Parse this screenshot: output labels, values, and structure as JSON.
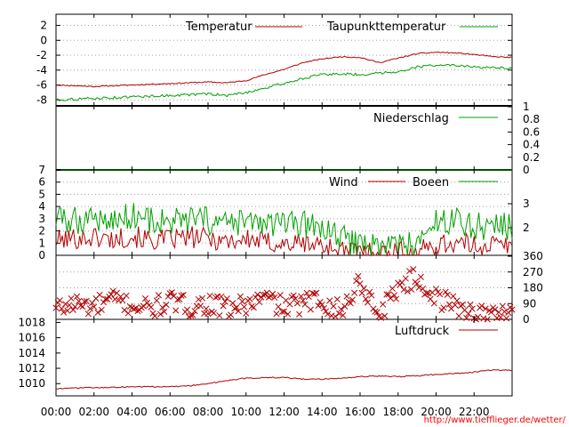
{
  "colors": {
    "temperature": "#b00000",
    "dewpoint": "#00a000",
    "precipitation": "#00a000",
    "wind": "#b00000",
    "gusts": "#00a000",
    "direction": "#b00000",
    "pressure": "#b00000",
    "url": "#ff0000"
  },
  "footer": {
    "url": "http://www.tiefflieger.de/wetter/"
  },
  "chart_data": [
    {
      "type": "line",
      "x": [
        "00:00",
        "01:00",
        "02:00",
        "03:00",
        "04:00",
        "05:00",
        "06:00",
        "07:00",
        "08:00",
        "09:00",
        "10:00",
        "11:00",
        "12:00",
        "13:00",
        "14:00",
        "15:00",
        "16:00",
        "17:00",
        "18:00",
        "19:00",
        "20:00",
        "21:00",
        "22:00",
        "23:00",
        "24:00"
      ],
      "series": [
        {
          "name": "Temperatur",
          "values": [
            -6.0,
            -6.1,
            -6.2,
            -6.1,
            -6.0,
            -5.9,
            -5.8,
            -5.7,
            -5.6,
            -5.7,
            -5.4,
            -4.6,
            -3.9,
            -3.0,
            -2.5,
            -2.2,
            -2.3,
            -3.0,
            -2.4,
            -1.8,
            -1.6,
            -1.7,
            -1.9,
            -2.2,
            -2.3
          ]
        },
        {
          "name": "Taupunkttemperatur",
          "values": [
            -8.0,
            -7.9,
            -7.8,
            -7.7,
            -7.6,
            -7.5,
            -7.4,
            -7.3,
            -7.2,
            -7.4,
            -7.0,
            -6.4,
            -5.8,
            -5.1,
            -4.6,
            -4.5,
            -4.6,
            -4.4,
            -4.2,
            -3.6,
            -3.3,
            -3.4,
            -3.6,
            -3.7,
            -3.8
          ]
        }
      ],
      "yticks": [
        2,
        0,
        -2,
        -4,
        -6,
        -8
      ],
      "ylim": [
        -8.8,
        3.5
      ]
    },
    {
      "type": "line",
      "x": [
        "00:00",
        "24:00"
      ],
      "series": [
        {
          "name": "Niederschlag",
          "values": [
            0,
            0
          ]
        }
      ],
      "yticks_right": [
        "1",
        "0.8",
        "0.6",
        "0.4",
        "0.2",
        "0"
      ],
      "ylim": [
        0,
        1
      ]
    },
    {
      "type": "line",
      "x": [
        "00:00",
        "01:00",
        "02:00",
        "03:00",
        "04:00",
        "05:00",
        "06:00",
        "07:00",
        "08:00",
        "09:00",
        "10:00",
        "11:00",
        "12:00",
        "13:00",
        "14:00",
        "15:00",
        "16:00",
        "17:00",
        "18:00",
        "19:00",
        "20:00",
        "21:00",
        "22:00",
        "23:00",
        "24:00"
      ],
      "series": [
        {
          "name": "Wind",
          "values": [
            1.2,
            1.4,
            1.5,
            1.3,
            1.6,
            1.2,
            1.3,
            1.5,
            1.4,
            1.2,
            1.3,
            1.1,
            0.9,
            1.0,
            0.8,
            0.4,
            0.3,
            0.2,
            0.3,
            0.2,
            0.9,
            1.0,
            0.8,
            0.9,
            0.7
          ]
        },
        {
          "name": "Boeen",
          "values": [
            3.0,
            2.8,
            3.2,
            2.7,
            3.4,
            2.9,
            2.6,
            2.9,
            2.8,
            2.5,
            2.7,
            2.6,
            2.4,
            2.5,
            2.3,
            1.3,
            1.0,
            0.8,
            0.9,
            0.8,
            2.6,
            2.9,
            2.4,
            2.5,
            2.2
          ]
        }
      ],
      "yticks": [
        7,
        6,
        5,
        4,
        3,
        2,
        1,
        0
      ],
      "yticks_right": [
        "3",
        "2"
      ],
      "ylim": [
        0,
        7
      ]
    },
    {
      "type": "scatter",
      "x": [
        "00:00",
        "01:00",
        "02:00",
        "03:00",
        "04:00",
        "05:00",
        "06:00",
        "07:00",
        "08:00",
        "09:00",
        "10:00",
        "11:00",
        "12:00",
        "13:00",
        "14:00",
        "15:00",
        "16:00",
        "17:00",
        "18:00",
        "19:00",
        "20:00",
        "21:00",
        "22:00",
        "23:00",
        "24:00"
      ],
      "series": [
        {
          "name": "",
          "values": [
            60,
            90,
            70,
            110,
            80,
            60,
            100,
            70,
            90,
            60,
            80,
            120,
            70,
            90,
            110,
            40,
            220,
            20,
            190,
            230,
            120,
            80,
            40,
            20,
            60
          ]
        }
      ],
      "yticks_right": [
        "360",
        "270",
        "180",
        "90",
        "0"
      ],
      "ylim": [
        0,
        360
      ]
    },
    {
      "type": "line",
      "x": [
        "00:00",
        "01:00",
        "02:00",
        "03:00",
        "04:00",
        "05:00",
        "06:00",
        "07:00",
        "08:00",
        "09:00",
        "10:00",
        "11:00",
        "12:00",
        "13:00",
        "14:00",
        "15:00",
        "16:00",
        "17:00",
        "18:00",
        "19:00",
        "20:00",
        "21:00",
        "22:00",
        "23:00",
        "24:00"
      ],
      "series": [
        {
          "name": "Luftdruck",
          "values": [
            1009.3,
            1009.4,
            1009.5,
            1009.5,
            1009.6,
            1009.6,
            1009.6,
            1009.7,
            1010.0,
            1010.4,
            1010.7,
            1010.8,
            1010.8,
            1010.6,
            1010.6,
            1010.7,
            1010.9,
            1011.0,
            1010.9,
            1011.0,
            1011.2,
            1011.3,
            1011.5,
            1011.8,
            1011.7
          ]
        }
      ],
      "yticks": [
        1018,
        1016,
        1014,
        1012,
        1010
      ],
      "ylim": [
        1008.4,
        1018.4
      ]
    }
  ],
  "xaxis": {
    "tick_labels": [
      "00:00",
      "02:00",
      "04:00",
      "06:00",
      "08:00",
      "10:00",
      "12:00",
      "14:00",
      "16:00",
      "18:00",
      "20:00",
      "22:00"
    ]
  }
}
